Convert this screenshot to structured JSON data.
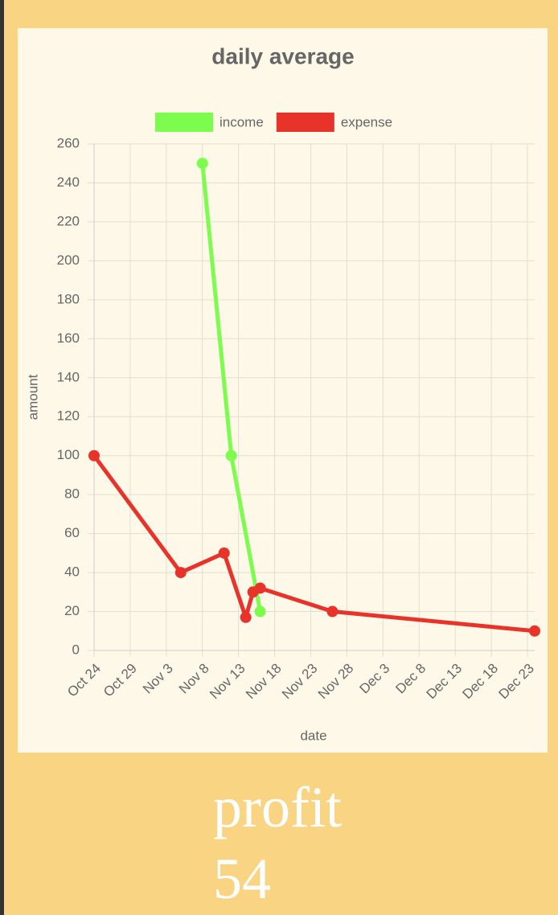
{
  "chart_data": {
    "type": "line",
    "title": "daily average",
    "x_label": "date",
    "y_label": "amount",
    "series": [
      {
        "name": "income",
        "color": "#7cfc4c",
        "x": [
          "Nov 8",
          "Nov 12",
          "Nov 16"
        ],
        "values": [
          250,
          100,
          20
        ]
      },
      {
        "name": "expense",
        "color": "#e8332a",
        "x": [
          "Oct 24",
          "Nov 5",
          "Nov 11",
          "Nov 14",
          "Nov 15",
          "Nov 16",
          "Nov 26",
          "Dec 24"
        ],
        "values": [
          100,
          40,
          50,
          17,
          30,
          32,
          20,
          10
        ]
      }
    ],
    "xlim": [
      "Oct 24",
      "Dec 24"
    ],
    "xticks": [
      "Oct 24",
      "Oct 29",
      "Nov 3",
      "Nov 8",
      "Nov 13",
      "Nov 18",
      "Nov 23",
      "Nov 28",
      "Dec 3",
      "Dec 8",
      "Dec 13",
      "Dec 18",
      "Dec 23"
    ],
    "ylim": [
      0,
      260
    ],
    "yticks": [
      0,
      20,
      40,
      60,
      80,
      100,
      120,
      140,
      160,
      180,
      200,
      220,
      240,
      260
    ],
    "grid": true,
    "legend": "top"
  },
  "profit": {
    "label": "profit",
    "value": 54
  }
}
